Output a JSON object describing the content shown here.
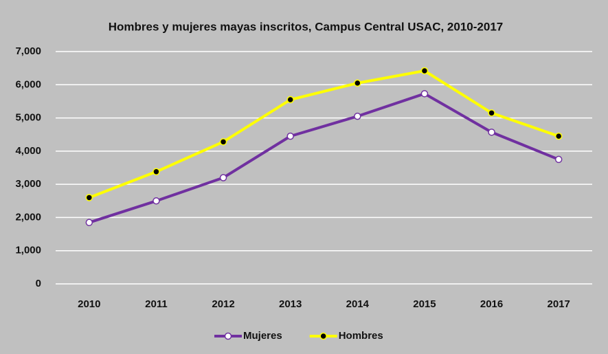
{
  "chart_data": {
    "type": "line",
    "title": "Hombres y mujeres mayas inscritos, Campus Central USAC, 2010-2017",
    "categories": [
      "2010",
      "2011",
      "2012",
      "2013",
      "2014",
      "2015",
      "2016",
      "2017"
    ],
    "series": [
      {
        "name": "Mujeres",
        "color": "#7030a0",
        "marker_fill": "#ffffff",
        "values": [
          1850,
          2500,
          3200,
          4450,
          5050,
          5730,
          4570,
          3750
        ]
      },
      {
        "name": "Hombres",
        "color": "#ffff00",
        "marker_fill": "#000000",
        "values": [
          2600,
          3380,
          4280,
          5550,
          6050,
          6420,
          5150,
          4450
        ]
      }
    ],
    "ylim": [
      0,
      7000
    ],
    "yticks": [
      0,
      {
        "value": 1000,
        "label": "1,000"
      },
      {
        "value": 2000,
        "label": "2,000"
      },
      {
        "value": 3000,
        "label": "3,000"
      },
      {
        "value": 4000,
        "label": "4,000"
      },
      {
        "value": 5000,
        "label": "5,000"
      },
      {
        "value": 6000,
        "label": "6,000"
      },
      {
        "value": 7000,
        "label": "7,000"
      }
    ],
    "grid": true,
    "legend": "bottom",
    "background": "#c0c0c0"
  }
}
